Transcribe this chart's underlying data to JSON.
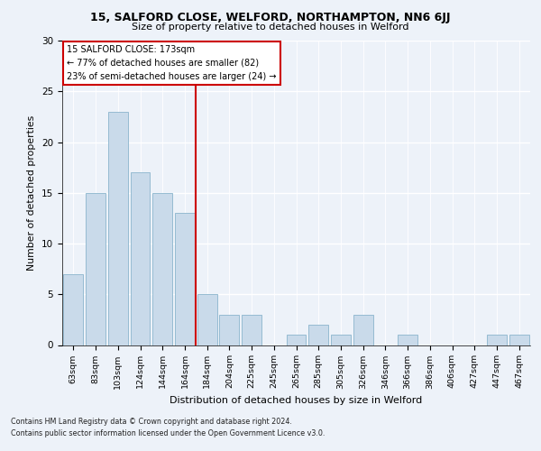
{
  "title1": "15, SALFORD CLOSE, WELFORD, NORTHAMPTON, NN6 6JJ",
  "title2": "Size of property relative to detached houses in Welford",
  "xlabel": "Distribution of detached houses by size in Welford",
  "ylabel": "Number of detached properties",
  "categories": [
    "63sqm",
    "83sqm",
    "103sqm",
    "124sqm",
    "144sqm",
    "164sqm",
    "184sqm",
    "204sqm",
    "225sqm",
    "245sqm",
    "265sqm",
    "285sqm",
    "305sqm",
    "326sqm",
    "346sqm",
    "366sqm",
    "386sqm",
    "406sqm",
    "427sqm",
    "447sqm",
    "467sqm"
  ],
  "values": [
    7,
    15,
    23,
    17,
    15,
    13,
    5,
    3,
    3,
    0,
    1,
    2,
    1,
    3,
    0,
    1,
    0,
    0,
    0,
    1,
    1
  ],
  "bar_color": "#c9daea",
  "bar_edge_color": "#8ab4cc",
  "vline_x": 5.5,
  "vline_color": "#cc0000",
  "annotation_text": "15 SALFORD CLOSE: 173sqm\n← 77% of detached houses are smaller (82)\n23% of semi-detached houses are larger (24) →",
  "annotation_box_color": "#cc0000",
  "footer1": "Contains HM Land Registry data © Crown copyright and database right 2024.",
  "footer2": "Contains public sector information licensed under the Open Government Licence v3.0.",
  "ylim": [
    0,
    30
  ],
  "bg_color": "#edf2f9",
  "plot_bg_color": "#edf2f9"
}
